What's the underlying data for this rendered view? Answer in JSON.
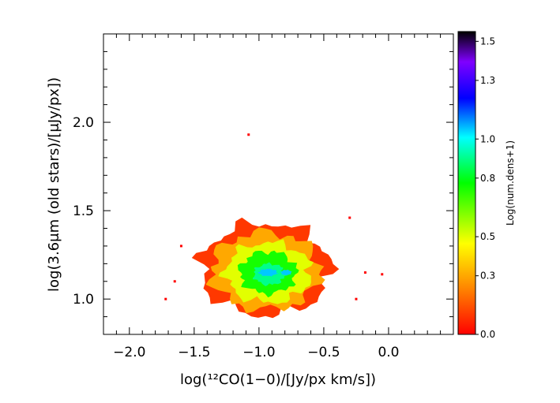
{
  "chart_data": {
    "type": "heatmap",
    "title": "",
    "xlabel": "log(¹²CO(1−0)/[Jy/px km/s])",
    "ylabel": "log(3.6μm (old stars)/[μJy/px])",
    "xlim": [
      -2.2,
      0.5
    ],
    "ylim": [
      0.8,
      2.5
    ],
    "x_ticks": [
      -2.0,
      -1.5,
      -1.0,
      -0.5,
      0.0
    ],
    "x_tick_labels": [
      "−2.0",
      "−1.5",
      "−1.0",
      "−0.5",
      "0.0"
    ],
    "y_ticks": [
      1.0,
      1.5,
      2.0
    ],
    "y_tick_labels": [
      "1.0",
      "1.5",
      "2.0"
    ],
    "grid": false,
    "colorbar": {
      "label": "Log(num.dens+1)",
      "range": [
        0.0,
        1.55
      ],
      "tick_values": [
        0.0,
        0.3,
        0.5,
        0.8,
        1.0,
        1.3,
        1.5
      ],
      "tick_labels": [
        "0.0",
        "0.3",
        "0.5",
        "0.8",
        "1.0",
        "1.3",
        "1.5"
      ],
      "colors": [
        "#ff0000",
        "#ff8c00",
        "#ffff00",
        "#00ff00",
        "#00ffff",
        "#0000ff",
        "#8000ff",
        "#000000"
      ]
    },
    "density_regions": [
      {
        "level": 0.1,
        "center": [
          -0.95,
          1.17
        ],
        "radius": [
          0.5,
          0.26
        ]
      },
      {
        "level": 0.3,
        "center": [
          -0.95,
          1.16
        ],
        "radius": [
          0.42,
          0.22
        ]
      },
      {
        "level": 0.5,
        "center": [
          -0.93,
          1.15
        ],
        "radius": [
          0.33,
          0.17
        ]
      },
      {
        "level": 0.75,
        "center": [
          -0.93,
          1.15
        ],
        "radius": [
          0.22,
          0.12
        ]
      },
      {
        "level": 0.9,
        "center": [
          -0.92,
          1.14
        ],
        "radius": [
          0.12,
          0.06
        ]
      },
      {
        "level": 1.05,
        "center": [
          -0.93,
          1.15
        ],
        "radius": [
          0.07,
          0.02
        ]
      },
      {
        "level": 1.05,
        "center": [
          -0.79,
          1.15
        ],
        "radius": [
          0.04,
          0.015
        ]
      }
    ],
    "outlier_points": [
      {
        "x": -1.08,
        "y": 1.93
      },
      {
        "x": -1.6,
        "y": 1.3
      },
      {
        "x": -1.72,
        "y": 1.0
      },
      {
        "x": -0.05,
        "y": 1.14
      },
      {
        "x": -0.3,
        "y": 1.46
      },
      {
        "x": -0.18,
        "y": 1.15
      },
      {
        "x": -1.65,
        "y": 1.1
      },
      {
        "x": -0.25,
        "y": 1.0
      }
    ]
  }
}
